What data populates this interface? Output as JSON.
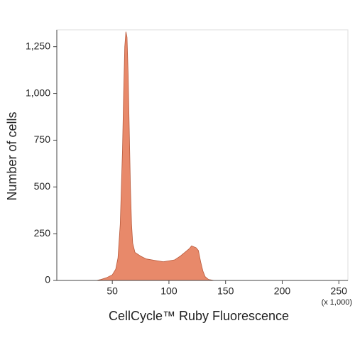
{
  "chart_data": {
    "type": "area",
    "xlabel": "CellCycle™ Ruby Fluorescence",
    "ylabel": "Number of cells",
    "x_note": "(x 1,000)",
    "color": "#e8896a",
    "edge_color": "#b85a3c",
    "x": [
      36,
      40,
      45,
      50,
      53,
      55,
      57,
      59,
      60,
      61,
      62,
      63,
      64,
      65,
      66,
      67,
      68,
      70,
      75,
      80,
      90,
      95,
      100,
      105,
      110,
      115,
      118,
      120,
      122,
      124,
      126,
      128,
      130,
      132,
      135,
      140
    ],
    "values": [
      0,
      5,
      15,
      30,
      60,
      120,
      300,
      700,
      1000,
      1250,
      1330,
      1300,
      1100,
      800,
      500,
      300,
      200,
      150,
      130,
      115,
      105,
      100,
      105,
      110,
      130,
      155,
      170,
      185,
      180,
      175,
      160,
      100,
      50,
      20,
      5,
      0
    ],
    "xlim": [
      1,
      258
    ],
    "ylim": [
      0,
      1340
    ],
    "xticks": [
      50,
      100,
      150,
      200,
      250
    ],
    "yticks": [
      0,
      250,
      500,
      750,
      {
        "value": 1000,
        "label": "1,000"
      },
      {
        "value": 1250,
        "label": "1,250"
      }
    ]
  }
}
